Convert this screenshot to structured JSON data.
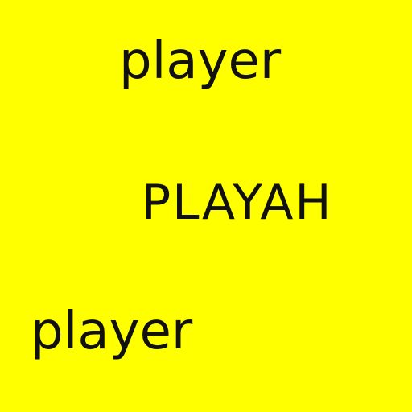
{
  "background_color": "#ffff00",
  "text_color": "#111111",
  "words": [
    "player",
    "PLAYAH",
    "player"
  ]
}
